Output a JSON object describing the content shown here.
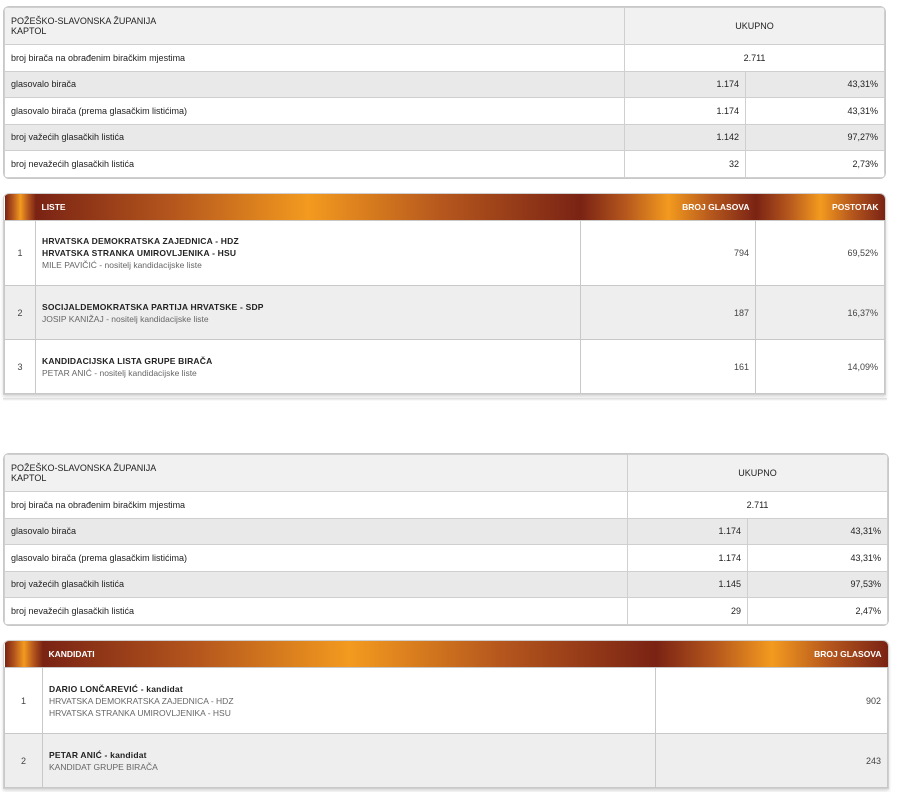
{
  "section1": {
    "stats": {
      "region_line1": "POŽEŠKO-SLAVONSKA ŽUPANIJA",
      "region_line2": "KAPTOL",
      "total_label": "UKUPNO",
      "rows": [
        {
          "label": "broj birača na obrađenim biračkim mjestima",
          "count": "2.711",
          "percent": ""
        },
        {
          "label": "glasovalo birača",
          "count": "1.174",
          "percent": "43,31%"
        },
        {
          "label": "glasovalo birača (prema glasačkim listićima)",
          "count": "1.174",
          "percent": "43,31%"
        },
        {
          "label": "broj važećih glasačkih listića",
          "count": "1.142",
          "percent": "97,27%"
        },
        {
          "label": "broj nevažećih glasačkih listića",
          "count": "32",
          "percent": "2,73%"
        }
      ]
    },
    "lists": {
      "header": {
        "lists": "LISTE",
        "votes": "BROJ GLASOVA",
        "percent": "POSTOTAK"
      },
      "rows": [
        {
          "no": "1",
          "party1": "HRVATSKA DEMOKRATSKA ZAJEDNICA - HDZ",
          "party2": "HRVATSKA STRANKA UMIROVLJENIKA - HSU",
          "holder": "MILE PAVIČIĆ - nositelj kandidacijske liste",
          "votes": "794",
          "percent": "69,52%"
        },
        {
          "no": "2",
          "party1": "SOCIJALDEMOKRATSKA PARTIJA HRVATSKE - SDP",
          "party2": "",
          "holder": "JOSIP KANIŽAJ - nositelj kandidacijske liste",
          "votes": "187",
          "percent": "16,37%"
        },
        {
          "no": "3",
          "party1": "KANDIDACIJSKA LISTA GRUPE BIRAČA",
          "party2": "",
          "holder": "PETAR ANIĆ - nositelj kandidacijske liste",
          "votes": "161",
          "percent": "14,09%"
        }
      ]
    }
  },
  "section2": {
    "stats": {
      "region_line1": "POŽEŠKO-SLAVONSKA ŽUPANIJA",
      "region_line2": "KAPTOL",
      "total_label": "UKUPNO",
      "rows": [
        {
          "label": "broj birača na obrađenim biračkim mjestima",
          "count": "2.711",
          "percent": ""
        },
        {
          "label": "glasovalo birača",
          "count": "1.174",
          "percent": "43,31%"
        },
        {
          "label": "glasovalo birača (prema glasačkim listićima)",
          "count": "1.174",
          "percent": "43,31%"
        },
        {
          "label": "broj važećih glasačkih listića",
          "count": "1.145",
          "percent": "97,53%"
        },
        {
          "label": "broj nevažećih glasačkih listića",
          "count": "29",
          "percent": "2,47%"
        }
      ]
    },
    "candidates": {
      "header": {
        "candidates": "KANDIDATI",
        "votes": "BROJ GLASOVA"
      },
      "rows": [
        {
          "no": "1",
          "name": "DARIO LONČAREVIĆ - kandidat",
          "sub1": "HRVATSKA DEMOKRATSKA ZAJEDNICA - HDZ",
          "sub2": "HRVATSKA STRANKA UMIROVLJENIKA - HSU",
          "votes": "902"
        },
        {
          "no": "2",
          "name": "PETAR ANIĆ - kandidat",
          "sub1": "KANDIDAT GRUPE BIRAČA",
          "sub2": "",
          "votes": "243"
        }
      ]
    }
  }
}
